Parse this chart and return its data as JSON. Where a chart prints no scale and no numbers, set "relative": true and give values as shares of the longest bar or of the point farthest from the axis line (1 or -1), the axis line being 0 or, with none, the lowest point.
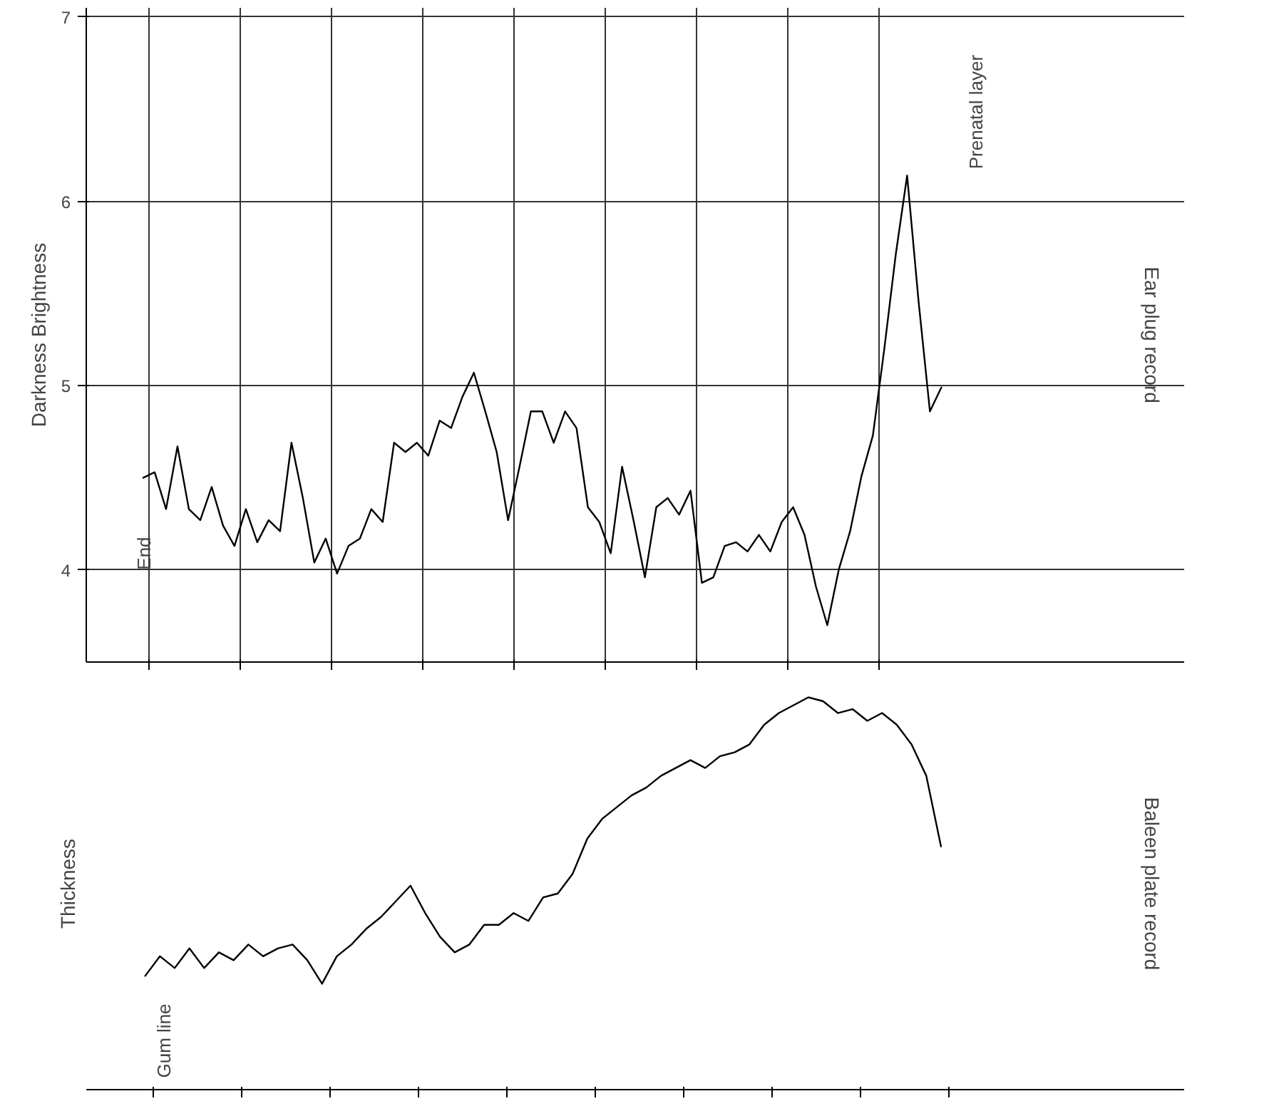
{
  "chart_data": [
    {
      "type": "line",
      "ylabel": "Darkness Brightness",
      "color": "#000000",
      "categories": [
        null,
        null,
        null,
        null,
        null,
        null,
        null,
        null,
        null,
        null,
        null,
        null,
        null,
        null,
        null,
        null,
        null,
        null,
        null,
        null,
        null,
        null,
        null,
        null,
        null,
        null,
        null,
        null,
        null,
        null,
        null,
        null,
        null,
        null,
        null,
        null,
        null,
        null,
        null,
        null,
        null,
        null,
        null,
        null,
        null,
        null,
        null,
        null,
        null,
        null,
        null,
        null,
        null,
        null,
        null,
        null,
        null,
        null,
        null,
        null,
        null,
        null,
        null,
        null,
        null,
        null,
        null,
        null,
        null,
        null,
        null
      ],
      "values": [
        4.5,
        4.53,
        4.33,
        4.67,
        4.33,
        4.27,
        4.45,
        4.24,
        4.13,
        4.33,
        4.15,
        4.27,
        4.21,
        4.69,
        4.39,
        4.04,
        4.17,
        3.98,
        4.13,
        4.17,
        4.33,
        4.26,
        4.69,
        4.64,
        4.69,
        4.62,
        4.81,
        4.77,
        4.94,
        5.07,
        4.86,
        4.64,
        4.27,
        4.56,
        4.86,
        4.86,
        4.69,
        4.86,
        4.77,
        4.34,
        4.26,
        4.09,
        4.56,
        4.27,
        3.96,
        4.34,
        4.39,
        4.3,
        4.43,
        3.93,
        3.96,
        4.13,
        4.15,
        4.1,
        4.19,
        4.1,
        4.26,
        4.34,
        4.19,
        3.91,
        3.7,
        4.0,
        4.21,
        4.51,
        4.73,
        5.2,
        5.71,
        6.14,
        5.46,
        4.86,
        4.99
      ],
      "ylim": [
        3.5,
        7.05
      ],
      "yticks": [
        4,
        5,
        6,
        7
      ],
      "grid": true,
      "tick_labels": "y",
      "annotations": [
        "End",
        "Prenatal layer",
        "Ear plug record"
      ]
    },
    {
      "type": "line",
      "ylabel": "Thickness",
      "color": "#000000",
      "relative": true,
      "categories": [
        null,
        null,
        null,
        null,
        null,
        null,
        null,
        null,
        null,
        null,
        null,
        null,
        null,
        null,
        null,
        null,
        null,
        null,
        null,
        null,
        null,
        null,
        null,
        null,
        null,
        null,
        null,
        null,
        null,
        null,
        null,
        null,
        null,
        null,
        null,
        null,
        null,
        null,
        null,
        null,
        null,
        null,
        null,
        null,
        null,
        null,
        null,
        null,
        null,
        null,
        null,
        null,
        null,
        null,
        null
      ],
      "values": [
        0.29,
        0.34,
        0.31,
        0.36,
        0.31,
        0.35,
        0.33,
        0.37,
        0.34,
        0.36,
        0.37,
        0.33,
        0.27,
        0.34,
        0.37,
        0.41,
        0.44,
        0.48,
        0.52,
        0.45,
        0.39,
        0.35,
        0.37,
        0.42,
        0.42,
        0.45,
        0.43,
        0.49,
        0.5,
        0.55,
        0.64,
        0.69,
        0.72,
        0.75,
        0.77,
        0.8,
        0.82,
        0.84,
        0.82,
        0.85,
        0.86,
        0.88,
        0.93,
        0.96,
        0.98,
        1,
        0.99,
        0.96,
        0.97,
        0.94,
        0.96,
        0.93,
        0.88,
        0.8,
        0.62
      ],
      "tick_labels": false,
      "annotations": [
        "Gum line",
        "Baleen plate record"
      ]
    }
  ]
}
